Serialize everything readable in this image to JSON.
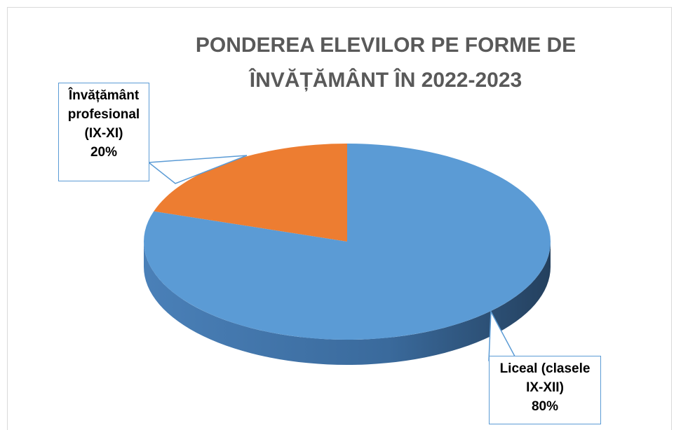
{
  "chart_data": {
    "type": "pie",
    "title": "PONDEREA ELEVILOR PE FORME DE ÎNVĂȚĂMÂNT ÎN 2022-2023",
    "categories": [
      "Învățământ profesional (IX-XI)",
      "Liceal (clasele IX-XII)"
    ],
    "values": [
      20,
      80
    ],
    "value_labels": [
      "20%",
      "80%"
    ],
    "colors": [
      "#ed7d31",
      "#5b9bd5"
    ]
  }
}
